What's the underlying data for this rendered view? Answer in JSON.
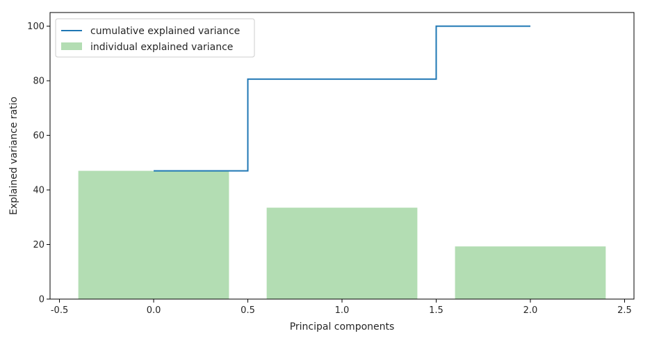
{
  "chart_data": {
    "type": "bar",
    "title": "",
    "xlabel": "Principal components",
    "ylabel": "Explained variance ratio",
    "xlim": [
      -0.55,
      2.55
    ],
    "ylim": [
      0,
      105
    ],
    "x_ticks": [
      -0.5,
      0.0,
      0.5,
      1.0,
      1.5,
      2.0,
      2.5
    ],
    "x_tick_labels": [
      "-0.5",
      "0.0",
      "0.5",
      "1.0",
      "1.5",
      "2.0",
      "2.5"
    ],
    "y_ticks": [
      0,
      20,
      40,
      60,
      80,
      100
    ],
    "y_tick_labels": [
      "0",
      "20",
      "40",
      "60",
      "80",
      "100"
    ],
    "grid": false,
    "legend_position": "top-left",
    "legend_labels": {
      "line": "cumulative explained variance",
      "bar": "individual explained variance"
    },
    "bars": {
      "name": "individual explained variance",
      "x": [
        0,
        1,
        2
      ],
      "width": 0.8,
      "values": [
        47,
        33.5,
        19.3
      ],
      "color": "#2ca02c",
      "opacity": 0.36
    },
    "step_line": {
      "name": "cumulative explained variance",
      "x": [
        0,
        1,
        2
      ],
      "values": [
        47,
        80.6,
        100
      ],
      "where": "mid",
      "color": "#1f77b4"
    }
  }
}
